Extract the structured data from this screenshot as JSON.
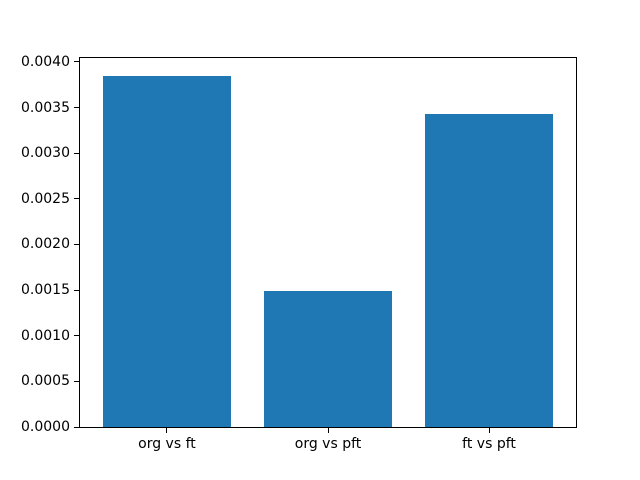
{
  "chart_data": {
    "type": "bar",
    "title": "",
    "xlabel": "",
    "ylabel": "",
    "categories": [
      "org vs ft",
      "org vs pft",
      "ft vs pft"
    ],
    "values": [
      0.00385,
      0.00149,
      0.00343
    ],
    "bar_color": "#1f77b4",
    "bar_width": 0.8,
    "xlim": [
      -0.54,
      2.54
    ],
    "ylim": [
      0,
      0.0040425
    ],
    "yticks": [
      0.0,
      0.0005,
      0.001,
      0.0015,
      0.002,
      0.0025,
      0.003,
      0.0035,
      0.004
    ],
    "ytick_labels": [
      "0.0000",
      "0.0005",
      "0.0010",
      "0.0015",
      "0.0020",
      "0.0025",
      "0.0030",
      "0.0035",
      "0.0040"
    ],
    "grid": false,
    "legend": null,
    "background": "#ffffff",
    "spine_color": "#000000",
    "tick_color": "#000000"
  }
}
